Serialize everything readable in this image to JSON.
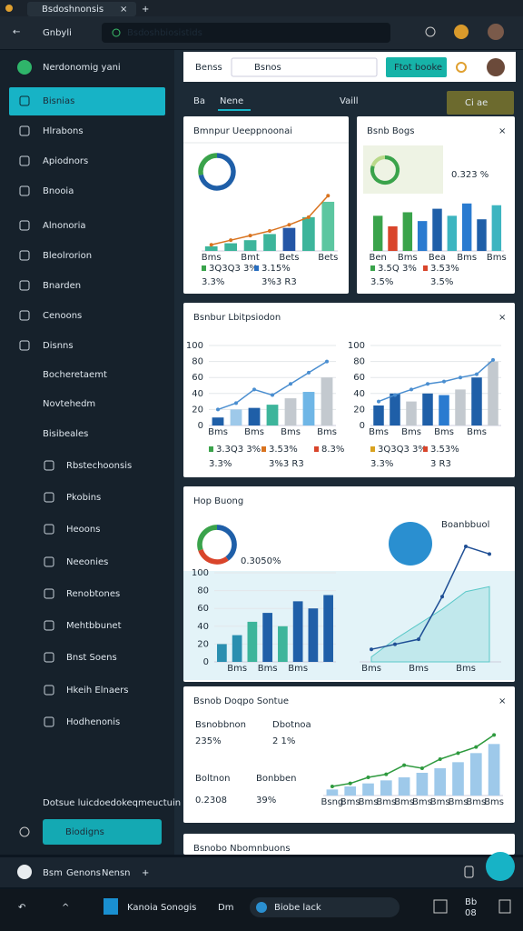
{
  "browser": {
    "tab_title": "Bsdoshnonsis",
    "nav_title": "Gnbyli",
    "address": "Bsdoshbiosistids"
  },
  "sidebar": {
    "profile": "Nerdonomig yani",
    "items": [
      "Bisnias",
      "Hlrabons",
      "Apiodnors",
      "Bnooia",
      "Alnonoria",
      "Bleolrorion",
      "Bnarden",
      "Cenoons",
      "Disnns",
      "Bocheretaemt",
      "Novtehedm",
      "Bisibeales",
      "Rbstechoonsis",
      "Pkobins",
      "Heoons",
      "Neeonies",
      "Renobtones",
      "Mehtbbunet",
      "Bnst Soens",
      "Hkeih Elnaers",
      "Hodhenonis"
    ],
    "footer": "Dotsue luicdoedokeqmeuctuin",
    "button": "Biodigns"
  },
  "header": {
    "left": "Benss",
    "search": "Bsnos",
    "button": "Ftot booke"
  },
  "tabs": [
    "Ba",
    "Nene",
    "Vaill"
  ],
  "tab_button": "Ci ae",
  "panels": [
    {
      "title": "Bmnpur Ueeppnoonai",
      "donut": {
        "values": [
          72,
          28
        ],
        "colors": [
          "#1f5fa8",
          "#3aa34b"
        ]
      },
      "charts": [
        {
          "ylim": [
            0,
            45
          ],
          "categories": [
            "Bms",
            null,
            "Bmt",
            null,
            "Bets",
            null,
            "Bets"
          ],
          "bars": {
            "values": [
              3,
              5,
              7,
              11,
              15,
              22,
              32
            ],
            "colors": [
              "#3db59b",
              "#3db59b",
              "#3db59b",
              "#3db59b",
              "#2456a6",
              "#3db59b",
              "#5cc6a0"
            ]
          },
          "line": {
            "values": [
              4,
              7,
              10,
              13,
              17,
              22,
              36
            ],
            "color": "#d9731f"
          },
          "stats": [
            {
              "text": "3Q3Q3 3%",
              "color": "#3aa34b"
            },
            {
              "text": "3.15%",
              "color": "#2a6fc0"
            }
          ],
          "notes": [
            "3.3%",
            "3%3 R3"
          ]
        }
      ]
    },
    {
      "title": "Bsnb Bogs",
      "highlight": "0.323 %",
      "donut": {
        "values": [
          80,
          20
        ],
        "colors": [
          "#3aa34b",
          "#b9d98a"
        ]
      },
      "charts": [
        {
          "ylim": [
            0,
            30
          ],
          "categories": [
            "Ben",
            null,
            "Bms",
            null,
            "Bea",
            null,
            "Bms",
            null,
            "Bms"
          ],
          "bars": {
            "values": [
              20,
              14,
              22,
              17,
              24,
              20,
              27,
              18,
              26
            ],
            "colors": [
              "#3aa34b",
              "#d9452b",
              "#3aa34b",
              "#2a7bd0",
              "#1f5fa8",
              "#3db5c0",
              "#2a7bd0",
              "#1f5fa8",
              "#3db5c0"
            ]
          },
          "stats": [
            {
              "text": "3.5Q 3%",
              "color": "#3aa34b"
            },
            {
              "text": "3.53%",
              "color": "#d9452b"
            }
          ],
          "notes": [
            "3.5%",
            "3.5%"
          ]
        }
      ]
    },
    {
      "title": "Bsnbur Lbitpsiodon",
      "charts": [
        {
          "ylim": [
            0,
            100
          ],
          "yticks": [
            0,
            20,
            40,
            60,
            80,
            100
          ],
          "categories": [
            "Bms",
            null,
            "Bms",
            null,
            "Bms",
            null,
            "Bms"
          ],
          "bars": {
            "values": [
              10,
              20,
              22,
              26,
              34,
              42,
              60
            ],
            "colors": [
              "#1f5fa8",
              "#9ec9ea",
              "#1f5fa8",
              "#3db59b",
              "#c3c9cf",
              "#6fb6e6",
              "#c3c9cf"
            ]
          },
          "line": {
            "values": [
              20,
              28,
              45,
              38,
              52,
              66,
              80
            ],
            "color": "#4a8ed0"
          },
          "stats": [
            {
              "text": "3.3Q3 3%",
              "color": "#3aa34b"
            },
            {
              "text": "3.53%",
              "color": "#d9731f"
            },
            {
              "text": "8.3%",
              "color": "#d9452b"
            }
          ],
          "notes": [
            "3.3%",
            "3%3 R3"
          ]
        },
        {
          "ylim": [
            0,
            100
          ],
          "yticks": [
            0,
            20,
            40,
            60,
            80,
            100
          ],
          "categories": [
            "Bms",
            null,
            "Bms",
            null,
            "Bms",
            null,
            "Bms",
            null
          ],
          "bars": {
            "values": [
              25,
              40,
              30,
              40,
              38,
              45,
              60,
              80
            ],
            "colors": [
              "#1f5fa8",
              "#1f5fa8",
              "#c3c9cf",
              "#1f5fa8",
              "#2a7bd0",
              "#c3c9cf",
              "#1f5fa8",
              "#c3c9cf"
            ]
          },
          "line": {
            "values": [
              30,
              38,
              45,
              52,
              55,
              60,
              64,
              82
            ],
            "color": "#4a8ed0"
          },
          "stats": [
            {
              "text": "3Q3Q3 3%",
              "color": "#d9a21f"
            },
            {
              "text": "3.53%",
              "color": "#d9452b"
            }
          ],
          "notes": [
            "3.3%",
            "3 R3"
          ]
        }
      ]
    },
    {
      "title": "Hop Buong",
      "donut": {
        "values": [
          40,
          30,
          30
        ],
        "colors": [
          "#1f5fa8",
          "#d9452b",
          "#3aa34b"
        ]
      },
      "donut_label": "0.3050%",
      "bubble_label": "Boanbbuol",
      "charts": [
        {
          "ylim": [
            0,
            100
          ],
          "yticks": [
            0,
            20,
            40,
            60,
            80,
            100
          ],
          "categories": [
            null,
            "Bms",
            null,
            "Bms",
            null,
            "Bms",
            null,
            null
          ],
          "bars": {
            "values": [
              20,
              30,
              45,
              55,
              40,
              68,
              60,
              75
            ],
            "colors": [
              "#2a8fb0",
              "#2a8fb0",
              "#3db59b",
              "#1f5fa8",
              "#3db59b",
              "#1f5fa8",
              "#1f5fa8",
              "#1f5fa8"
            ]
          }
        },
        {
          "ylim": [
            0,
            100
          ],
          "categories": [
            "Bms",
            null,
            "Bms",
            null,
            "Bms",
            null
          ],
          "line": {
            "values": [
              10,
              14,
              18,
              52,
              92,
              86
            ],
            "color": "#1f4f95"
          },
          "area": {
            "values": [
              4,
              18,
              30,
              42,
              56,
              60
            ],
            "color": "#5ac8c8"
          }
        }
      ]
    },
    {
      "title": "Bsnob Doqpo Sontue",
      "figures": [
        {
          "label": "Bsnobbnon",
          "value": "235%",
          "color": "#2e9a3e"
        },
        {
          "label": "Dbotnoa",
          "value": "2 1%",
          "color": "#2e9a3e"
        },
        {
          "label": "Boltnon",
          "value": "0.2308",
          "color": "#1d2b38"
        },
        {
          "label": "Bonbben",
          "value": "39%",
          "color": "#d9731f"
        }
      ],
      "charts": [
        {
          "ylim": [
            0,
            45
          ],
          "categories": [
            "Bsng",
            "Bms",
            "Bms",
            "Bms",
            "Bms",
            "Bms",
            "Bms",
            "Bms",
            "Bms",
            "Bms"
          ],
          "bars": {
            "values": [
              4,
              6,
              8,
              10,
              12,
              15,
              18,
              22,
              28,
              34
            ],
            "colors": [
              "#9ec9ea",
              "#9ec9ea",
              "#9ec9ea",
              "#9ec9ea",
              "#9ec9ea",
              "#9ec9ea",
              "#9ec9ea",
              "#9ec9ea",
              "#9ec9ea",
              "#9ec9ea"
            ]
          },
          "line": {
            "values": [
              6,
              8,
              12,
              14,
              20,
              18,
              24,
              28,
              32,
              40
            ],
            "color": "#2e9a3e"
          }
        }
      ]
    },
    {
      "title": "Bsnobo Nbomnbuons"
    }
  ],
  "footer_bar": [
    "Bsm",
    "Genons",
    "Nensn"
  ],
  "taskbar": {
    "app": "Kanoia Sonogis",
    "time": "Dm",
    "search": "Biobe lack",
    "clock": [
      "Bb",
      "08"
    ]
  }
}
